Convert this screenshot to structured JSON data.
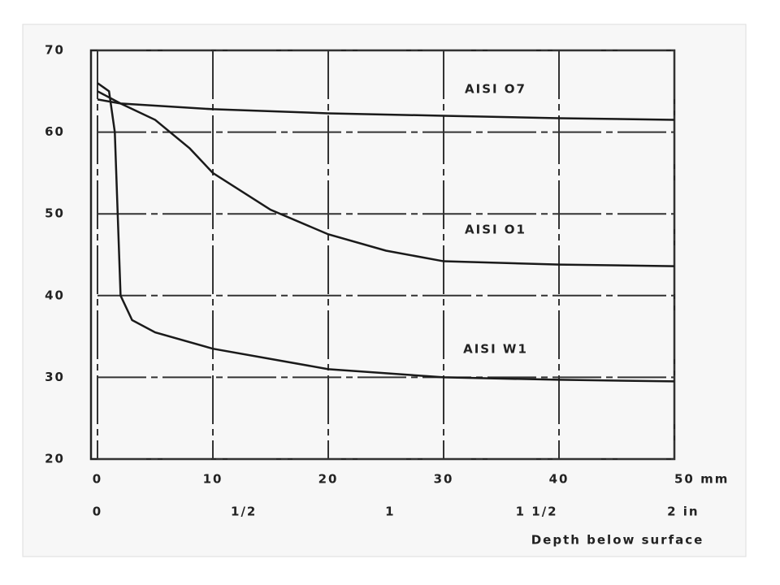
{
  "chart_data": {
    "type": "line",
    "x_label": "Depth below surface",
    "xlim": [
      0,
      50
    ],
    "xticks": [
      0,
      10,
      20,
      30,
      40,
      {
        "value": 50,
        "label": "50 mm"
      }
    ],
    "x2lim": [
      0,
      1.97
    ],
    "x2ticks": [
      0,
      {
        "value": 0.5,
        "label": "1/2"
      },
      1,
      {
        "value": 1.5,
        "label": "1 1/2"
      },
      {
        "value": 2,
        "label": "2 in"
      }
    ],
    "ylim": [
      20,
      70
    ],
    "yticks": [
      20,
      30,
      40,
      50,
      60,
      70
    ],
    "grid": true,
    "series": [
      {
        "name": "AISI O7",
        "color": "#1a1a1a",
        "x": [
          0,
          2,
          10,
          20,
          30,
          40,
          50
        ],
        "values": [
          64,
          63.5,
          62.8,
          62.3,
          62,
          61.7,
          61.5
        ]
      },
      {
        "name": "AISI O1",
        "color": "#1a1a1a",
        "x": [
          0,
          2,
          5,
          8,
          10,
          15,
          20,
          25,
          30,
          40,
          50
        ],
        "values": [
          65,
          63.5,
          61.5,
          58,
          55,
          50.5,
          47.5,
          45.5,
          44.2,
          43.8,
          43.6
        ]
      },
      {
        "name": "AISI W1",
        "color": "#1a1a1a",
        "x": [
          0,
          1,
          1.5,
          2,
          3,
          5,
          10,
          20,
          30,
          40,
          50
        ],
        "values": [
          66,
          65,
          60,
          40,
          37,
          35.5,
          33.5,
          31,
          30,
          29.7,
          29.5
        ]
      }
    ]
  }
}
